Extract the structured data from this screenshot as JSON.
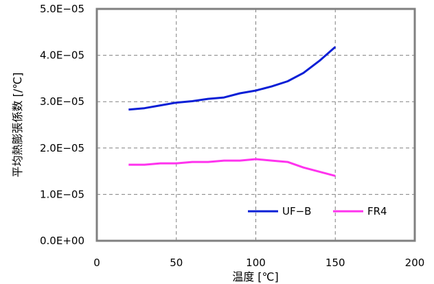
{
  "chart_data": {
    "type": "line",
    "xlabel": "温度 [℃]",
    "ylabel": "平均熱膨張係数 [/℃]",
    "xlim": [
      0,
      200
    ],
    "ylim": [
      0,
      5e-05
    ],
    "x_ticks": [
      0,
      50,
      100,
      150,
      200
    ],
    "x_tick_labels": [
      "0",
      "50",
      "100",
      "150",
      "200"
    ],
    "y_ticks": [
      0,
      1e-05,
      2e-05,
      3e-05,
      4e-05,
      5e-05
    ],
    "y_tick_labels": [
      "0.0E+00",
      "1.0E−05",
      "2.0E−05",
      "3.0E−05",
      "4.0E−05",
      "5.0E−05"
    ],
    "grid": true,
    "legend_position": "bottom-right",
    "series": [
      {
        "name": "UF−B",
        "color": "#0a1fd6",
        "x": [
          20,
          30,
          40,
          50,
          60,
          70,
          80,
          90,
          100,
          110,
          120,
          130,
          140,
          150
        ],
        "y": [
          2.83e-05,
          2.86e-05,
          2.92e-05,
          2.98e-05,
          3.01e-05,
          3.06e-05,
          3.09e-05,
          3.18e-05,
          3.24e-05,
          3.33e-05,
          3.44e-05,
          3.62e-05,
          3.88e-05,
          4.18e-05
        ]
      },
      {
        "name": "FR4",
        "color": "#ff33ee",
        "x": [
          20,
          30,
          40,
          50,
          60,
          70,
          80,
          90,
          100,
          110,
          120,
          130,
          140,
          150
        ],
        "y": [
          1.64e-05,
          1.64e-05,
          1.67e-05,
          1.67e-05,
          1.7e-05,
          1.7e-05,
          1.73e-05,
          1.73e-05,
          1.76e-05,
          1.73e-05,
          1.7e-05,
          1.58e-05,
          1.49e-05,
          1.4e-05
        ]
      }
    ]
  }
}
